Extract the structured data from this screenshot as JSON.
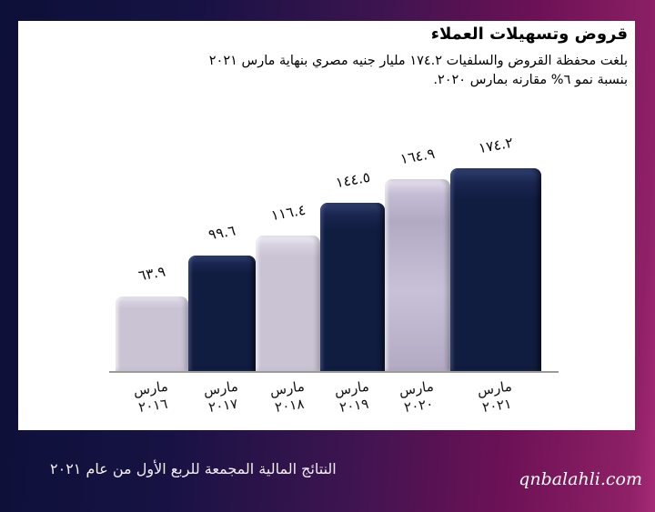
{
  "header": {
    "title": "قروض وتسهيلات العملاء",
    "subtitle_line1": "بلغت محفظة القروض والسلفيات ١٧٤.٢ مليار جنيه مصري بنهاية مارس ٢٠٢١",
    "subtitle_line2": "بنسبة نمو ٦% مقارنه بمارس ٢٠٢٠."
  },
  "chart_data": {
    "type": "bar",
    "title": "قروض وتسهيلات العملاء",
    "unit": "مليار جنيه مصري",
    "categories": [
      "مارس ٢٠١٦",
      "مارس ٢٠١٧",
      "مارس ٢٠١٨",
      "مارس ٢٠١٩",
      "مارس ٢٠٢٠",
      "مارس ٢٠٢١"
    ],
    "category_lines": [
      [
        "مارس",
        "٢٠١٦"
      ],
      [
        "مارس",
        "٢٠١٧"
      ],
      [
        "مارس",
        "٢٠١٨"
      ],
      [
        "مارس",
        "٢٠١٩"
      ],
      [
        "مارس",
        "٢٠٢٠"
      ],
      [
        "مارس",
        "٢٠٢١"
      ]
    ],
    "values": [
      63.9,
      99.6,
      116.4,
      144.5,
      164.9,
      174.2
    ],
    "value_labels": [
      "٦٣.٩",
      "٩٩.٦",
      "١١٦.٤",
      "١٤٤.٥",
      "١٦٤.٩",
      "١٧٤.٢"
    ],
    "bar_palette": [
      "light",
      "dark",
      "light",
      "dark",
      "light_gradient",
      "dark"
    ],
    "ylim": [
      0,
      190
    ],
    "grid": false,
    "legend": false,
    "y_axis_visible": false
  },
  "footer": {
    "left_text": "النتائج المالية المجمعة للربع الأول من عام  ٢٠٢١",
    "website": "qnbalahli.com"
  },
  "colors": {
    "bar_dark": "#101c40",
    "bar_light": "#c9c3d4",
    "bar_light_gradient": "#b2aac3",
    "background_left": "#0d1038",
    "background_right": "#8e2066",
    "axis_line": "#9b9b9b",
    "text_on_background": "#f3eef6"
  }
}
